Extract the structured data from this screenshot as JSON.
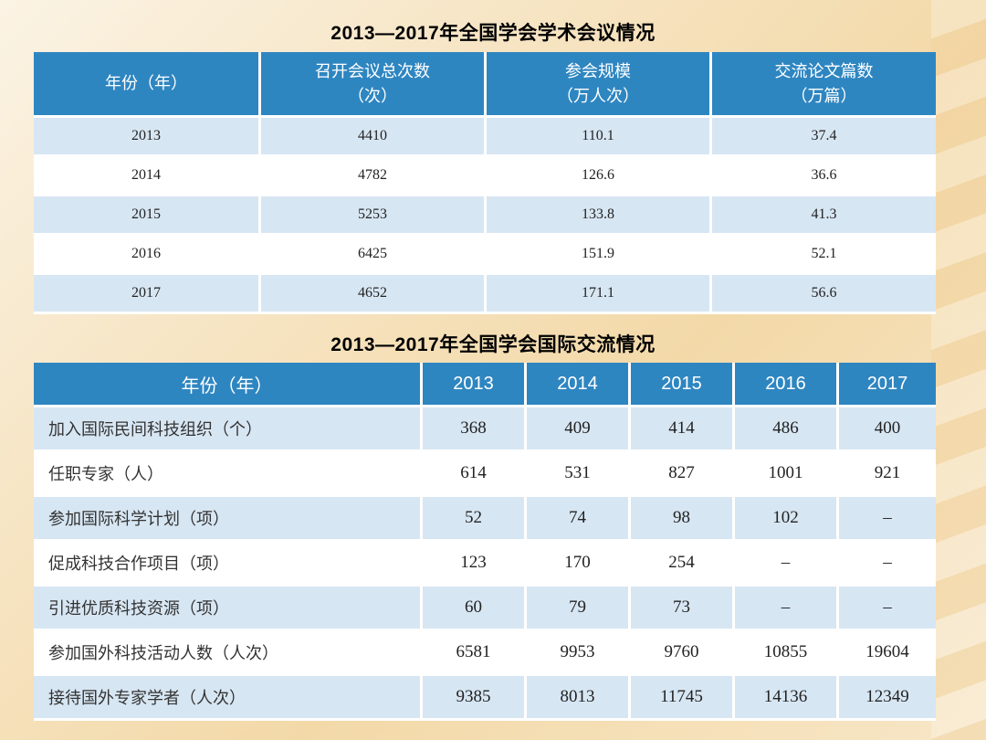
{
  "table1": {
    "title": "2013—2017年全国学会学术会议情况",
    "headers": [
      {
        "line1": "年份（年）",
        "line2": ""
      },
      {
        "line1": "召开会议总次数",
        "line2": "（次）"
      },
      {
        "line1": "参会规模",
        "line2": "（万人次）"
      },
      {
        "line1": "交流论文篇数",
        "line2": "（万篇）"
      }
    ],
    "rows": [
      [
        "2013",
        "4410",
        "110.1",
        "37.4"
      ],
      [
        "2014",
        "4782",
        "126.6",
        "36.6"
      ],
      [
        "2015",
        "5253",
        "133.8",
        "41.3"
      ],
      [
        "2016",
        "6425",
        "151.9",
        "52.1"
      ],
      [
        "2017",
        "4652",
        "171.1",
        "56.6"
      ]
    ]
  },
  "table2": {
    "title": "2013—2017年全国学会国际交流情况",
    "headers": [
      "年份（年）",
      "2013",
      "2014",
      "2015",
      "2016",
      "2017"
    ],
    "rows": [
      [
        "加入国际民间科技组织（个）",
        "368",
        "409",
        "414",
        "486",
        "400"
      ],
      [
        "任职专家（人）",
        "614",
        "531",
        "827",
        "1001",
        "921"
      ],
      [
        "参加国际科学计划（项）",
        "52",
        "74",
        "98",
        "102",
        "–"
      ],
      [
        "促成科技合作项目（项）",
        "123",
        "170",
        "254",
        "–",
        "–"
      ],
      [
        "引进优质科技资源（项）",
        "60",
        "79",
        "73",
        "–",
        "–"
      ],
      [
        "参加国外科技活动人数（人次）",
        "6581",
        "9953",
        "9760",
        "10855",
        "19604"
      ],
      [
        "接待国外专家学者（人次）",
        "9385",
        "8013",
        "11745",
        "14136",
        "12349"
      ]
    ]
  }
}
